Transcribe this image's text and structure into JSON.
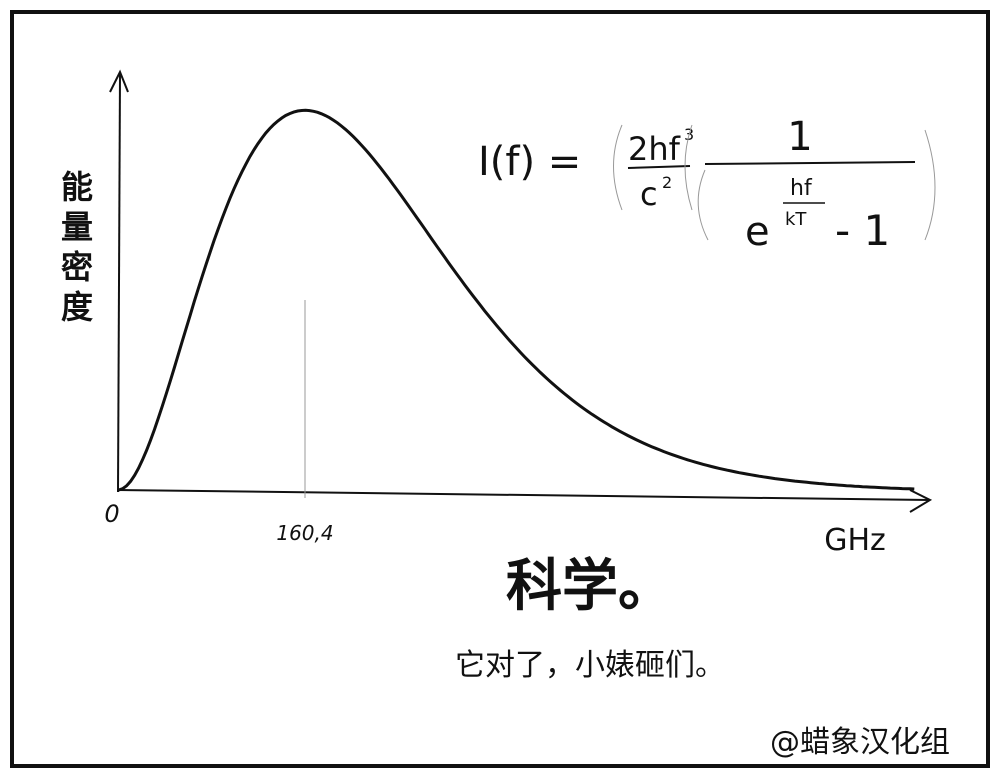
{
  "axes": {
    "y_label": "能量密度",
    "x_label": "GHz",
    "origin_label": "0",
    "peak_label": "160,4"
  },
  "formula": {
    "lhs": "I(f) =",
    "numerator": "2hf",
    "numerator_power": "3",
    "denominator": "c",
    "denominator_power": "2",
    "one": "1",
    "base": "e",
    "exponent_top": "hf",
    "exponent_bottom": "kT",
    "tail": "- 1"
  },
  "caption": {
    "title": "科学。",
    "subtitle": "它对了，小婊砸们。"
  },
  "watermark": "@蜡象汉化组"
}
